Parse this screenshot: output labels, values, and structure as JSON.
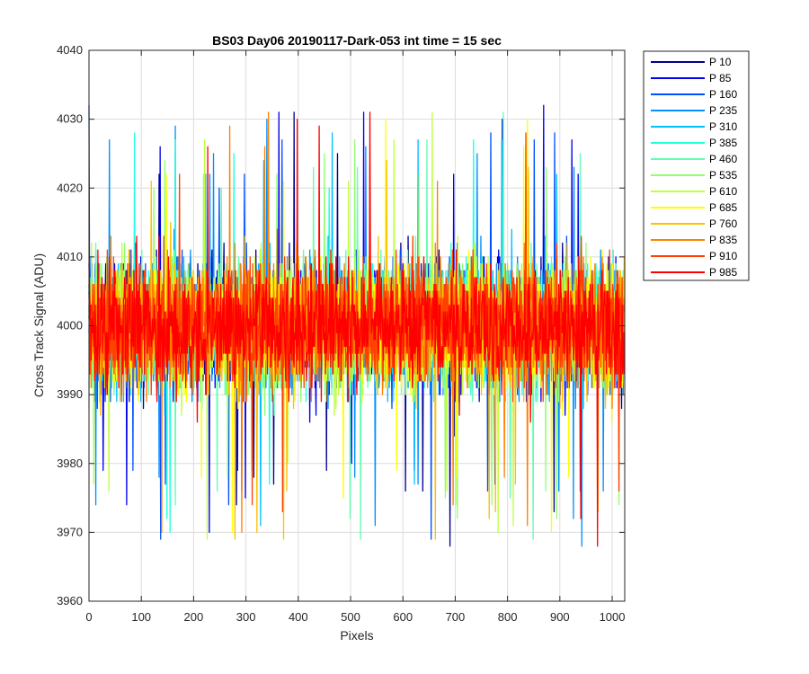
{
  "chart_data": {
    "type": "line",
    "title": "BS03 Day06 20190117-Dark-053 int time = 15 sec",
    "xlabel": "Pixels",
    "ylabel": "Cross Track Signal (ADU)",
    "xlim": [
      0,
      1024
    ],
    "ylim": [
      3960,
      4040
    ],
    "xticks": [
      0,
      100,
      200,
      300,
      400,
      500,
      600,
      700,
      800,
      900,
      1000
    ],
    "yticks": [
      3960,
      3970,
      3980,
      3990,
      4000,
      4010,
      4020,
      4030,
      4040
    ],
    "grid": true,
    "legend_position": "outside-top-right",
    "noise_profile": {
      "mean": 4000,
      "typical_range": [
        3985,
        4015
      ],
      "min": 3966,
      "max": 4039
    },
    "series": [
      {
        "name": "P 10",
        "color": "#00008f"
      },
      {
        "name": "P 85",
        "color": "#0000ef"
      },
      {
        "name": "P 160",
        "color": "#0050ff"
      },
      {
        "name": "P 235",
        "color": "#0090ff"
      },
      {
        "name": "P 310",
        "color": "#00c0ff"
      },
      {
        "name": "P 385",
        "color": "#20ffdf"
      },
      {
        "name": "P 460",
        "color": "#60ffb0"
      },
      {
        "name": "P 535",
        "color": "#90ff70"
      },
      {
        "name": "P 610",
        "color": "#c0ff40"
      },
      {
        "name": "P 685",
        "color": "#ffff00"
      },
      {
        "name": "P 760",
        "color": "#ffc000"
      },
      {
        "name": "P 835",
        "color": "#ff8000"
      },
      {
        "name": "P 910",
        "color": "#ff4000"
      },
      {
        "name": "P 985",
        "color": "#ff0000"
      }
    ]
  }
}
